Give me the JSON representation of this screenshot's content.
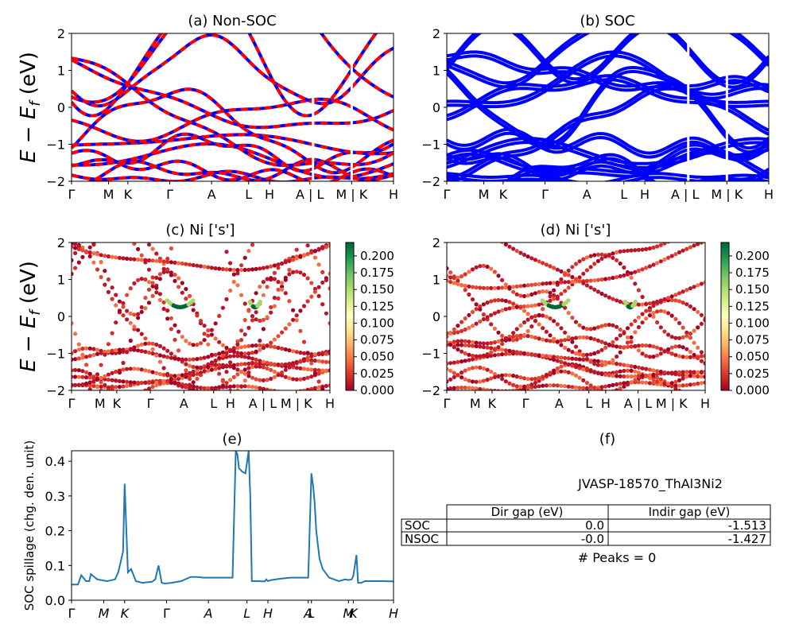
{
  "ylabel": "E − E",
  "ylabel_sub": "f",
  "ylabel_unit": " (eV)",
  "colors": {
    "nonsoc_a": "#ff0000",
    "nonsoc_b": "#0000ff",
    "soc": "#0000ff",
    "spillage": "#1f77b4"
  },
  "band_panels": [
    {
      "title": "(a) Non-SOC",
      "y_ticks": [
        "−2",
        "−1",
        "0",
        "1",
        "2"
      ],
      "kpoint_labels": [
        "Γ",
        "M",
        "K",
        "Γ",
        "A",
        "L",
        "H",
        "A | L",
        "M | K",
        "H"
      ],
      "break_positions": [
        0.75,
        0.87
      ]
    },
    {
      "title": "(b) SOC",
      "y_ticks": [
        "−2",
        "−1",
        "0",
        "1",
        "2"
      ],
      "kpoint_labels": [
        "Γ",
        "M",
        "K",
        "Γ",
        "A",
        "L",
        "H",
        "A | L",
        "M | K",
        "H"
      ],
      "break_positions": [
        0.75,
        0.87
      ]
    },
    {
      "title": "(c)  Ni ['s']",
      "y_ticks": [
        "−2",
        "−1",
        "0",
        "1",
        "2"
      ],
      "kpoint_labels": [
        "Γ",
        "M",
        "K",
        "Γ",
        "A",
        "L",
        "H",
        "A | L",
        "M | K",
        "H"
      ],
      "colorbar_ticks": [
        "0.000",
        "0.025",
        "0.050",
        "0.075",
        "0.100",
        "0.125",
        "0.150",
        "0.175",
        "0.200"
      ]
    },
    {
      "title": "(d) Ni ['s']",
      "y_ticks": [
        "−2",
        "−1",
        "0",
        "1",
        "2"
      ],
      "kpoint_labels": [
        "Γ",
        "M",
        "K",
        "Γ",
        "A",
        "L",
        "H",
        "A | L",
        "M | K",
        "H"
      ],
      "colorbar_ticks": [
        "0.000",
        "0.025",
        "0.050",
        "0.075",
        "0.100",
        "0.125",
        "0.150",
        "0.175",
        "0.200"
      ]
    }
  ],
  "chart_data": {
    "type": "line",
    "title": "(e)",
    "ylabel": "SOC spillage (chg. den. unit)",
    "ylim": [
      0,
      0.43
    ],
    "y_ticks": [
      0.0,
      0.1,
      0.2,
      0.3,
      0.4
    ],
    "x_ticks": [
      {
        "label": "Γ",
        "x": 0.0
      },
      {
        "label": "M",
        "x": 0.1
      },
      {
        "label": "K",
        "x": 0.165
      },
      {
        "label": "Γ",
        "x": 0.295
      },
      {
        "label": "A",
        "x": 0.425
      },
      {
        "label": "L",
        "x": 0.545
      },
      {
        "label": "H",
        "x": 0.61
      },
      {
        "label": "A",
        "x": 0.735
      },
      {
        "label": "L",
        "x": 0.745
      },
      {
        "label": "M",
        "x": 0.86
      },
      {
        "label": "K",
        "x": 0.875
      },
      {
        "label": "H",
        "x": 1.0
      }
    ],
    "series": [
      {
        "x": [
          0.0,
          0.02,
          0.03,
          0.045,
          0.055,
          0.06,
          0.08,
          0.11,
          0.135,
          0.145,
          0.16,
          0.165,
          0.175,
          0.185,
          0.2,
          0.22,
          0.25,
          0.26,
          0.27,
          0.28,
          0.29,
          0.31,
          0.34,
          0.37,
          0.39,
          0.41,
          0.45,
          0.5,
          0.51,
          0.515,
          0.52,
          0.53,
          0.54,
          0.55,
          0.555,
          0.56,
          0.58,
          0.6,
          0.605,
          0.61,
          0.62,
          0.65,
          0.68,
          0.7,
          0.72,
          0.735,
          0.745,
          0.75,
          0.755,
          0.76,
          0.77,
          0.78,
          0.8,
          0.83,
          0.85,
          0.86,
          0.87,
          0.875,
          0.885,
          0.89,
          0.9,
          0.91,
          0.93,
          0.97,
          1.0
        ],
        "y": [
          0.045,
          0.045,
          0.072,
          0.055,
          0.055,
          0.075,
          0.06,
          0.055,
          0.06,
          0.08,
          0.14,
          0.335,
          0.08,
          0.09,
          0.055,
          0.05,
          0.053,
          0.06,
          0.1,
          0.05,
          0.048,
          0.05,
          0.055,
          0.067,
          0.067,
          0.065,
          0.065,
          0.065,
          0.43,
          0.42,
          0.38,
          0.37,
          0.365,
          0.43,
          0.3,
          0.055,
          0.055,
          0.054,
          0.06,
          0.055,
          0.058,
          0.062,
          0.065,
          0.065,
          0.065,
          0.065,
          0.365,
          0.33,
          0.28,
          0.2,
          0.12,
          0.09,
          0.065,
          0.055,
          0.06,
          0.058,
          0.06,
          0.07,
          0.13,
          0.05,
          0.05,
          0.055,
          0.055,
          0.055,
          0.054
        ]
      }
    ]
  },
  "table": {
    "title": "(f)",
    "material": "JVASP-18570_ThAl3Ni2",
    "col_headers": [
      "Dir gap (eV)",
      "Indir gap (eV)"
    ],
    "rows": [
      {
        "label": "SOC",
        "dir": "0.0",
        "indir": "-1.513"
      },
      {
        "label": "NSOC",
        "dir": "-0.0",
        "indir": "-1.427"
      }
    ],
    "peaks": "# Peaks = 0"
  }
}
